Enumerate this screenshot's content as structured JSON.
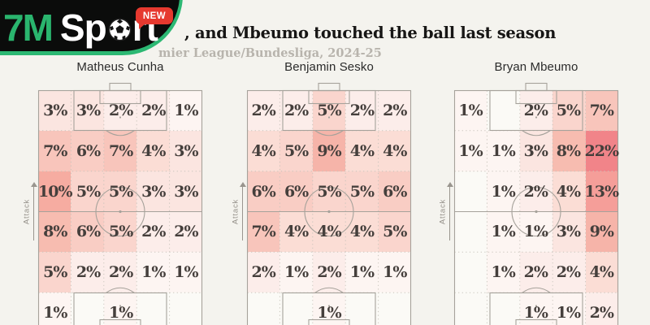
{
  "header": {
    "title_fragment": ", and Mbeumo touched the ball last season",
    "subtitle_fragment": "mier League/Bundesliga, 2024-25"
  },
  "logo": {
    "brand": "7M",
    "sport_prefix": "Sp",
    "sport_suffix": "rt",
    "badge": "NEW"
  },
  "labels": {
    "attack": "Attack",
    "unit_suffix": "%"
  },
  "colors": {
    "page_bg": "#f4f3ee",
    "pitch_bg": "#fbfaf6",
    "pitch_line": "#a6a29b",
    "grid_dot": "#c8c4bb",
    "value_text": "#453f3c",
    "accent_green": "#2cb873",
    "badge_red": "#e6392f",
    "scale": {
      "1": "#fdf5f2",
      "2": "#fcedea",
      "3": "#fbe5e0",
      "4": "#fbddd5",
      "5": "#fad5cd",
      "6": "#f9cdc4",
      "7": "#f8c5bb",
      "8": "#f7bcb0",
      "9": "#f6b4a9",
      "10": "#f6aca1",
      "13": "#f59e99",
      "22": "#f18489"
    }
  },
  "chart_data": [
    {
      "type": "heatmap",
      "title": "Matheus Cunha",
      "unit": "percent of touches",
      "grid": {
        "rows": 6,
        "cols": 5
      },
      "attack_direction": "up",
      "zero_rendered_blank": true,
      "values": [
        [
          3,
          3,
          2,
          2,
          1
        ],
        [
          7,
          6,
          7,
          4,
          3
        ],
        [
          10,
          5,
          5,
          3,
          3
        ],
        [
          8,
          6,
          5,
          2,
          2
        ],
        [
          5,
          2,
          2,
          1,
          1
        ],
        [
          1,
          0,
          1,
          0,
          0
        ]
      ]
    },
    {
      "type": "heatmap",
      "title": "Benjamin Sesko",
      "unit": "percent of touches",
      "grid": {
        "rows": 6,
        "cols": 5
      },
      "attack_direction": "up",
      "zero_rendered_blank": true,
      "values": [
        [
          2,
          2,
          5,
          2,
          2
        ],
        [
          4,
          5,
          9,
          4,
          4
        ],
        [
          6,
          6,
          5,
          5,
          6
        ],
        [
          7,
          4,
          4,
          4,
          5
        ],
        [
          2,
          1,
          2,
          1,
          1
        ],
        [
          0,
          0,
          1,
          0,
          0
        ]
      ]
    },
    {
      "type": "heatmap",
      "title": "Bryan Mbeumo",
      "unit": "percent of touches",
      "grid": {
        "rows": 6,
        "cols": 5
      },
      "attack_direction": "up",
      "zero_rendered_blank": true,
      "values": [
        [
          1,
          0,
          2,
          5,
          7
        ],
        [
          1,
          1,
          3,
          8,
          22
        ],
        [
          0,
          1,
          2,
          4,
          13
        ],
        [
          0,
          1,
          1,
          3,
          9
        ],
        [
          0,
          1,
          2,
          2,
          4
        ],
        [
          0,
          0,
          1,
          1,
          2
        ]
      ]
    }
  ]
}
